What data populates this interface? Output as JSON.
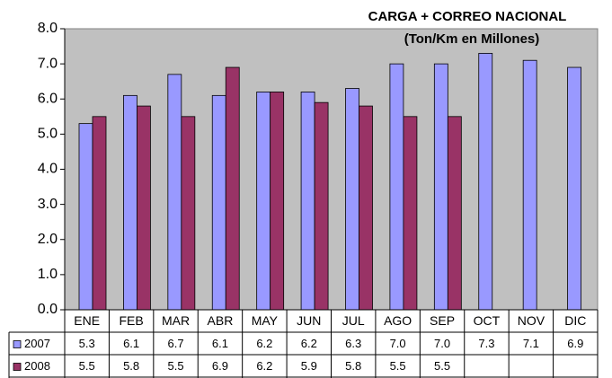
{
  "chart_data": {
    "type": "bar",
    "title": "CARGA + CORREO NACIONAL",
    "subtitle": "(Ton/Km en Millones)",
    "categories": [
      "ENE",
      "FEB",
      "MAR",
      "ABR",
      "MAY",
      "JUN",
      "JUL",
      "AGO",
      "SEP",
      "OCT",
      "NOV",
      "DIC"
    ],
    "series": [
      {
        "name": "2007",
        "color": "#9999ff",
        "values": [
          5.3,
          6.1,
          6.7,
          6.1,
          6.2,
          6.2,
          6.3,
          7.0,
          7.0,
          7.3,
          7.1,
          6.9
        ],
        "value_labels": [
          "5.3",
          "6.1",
          "6.7",
          "6.1",
          "6.2",
          "6.2",
          "6.3",
          "7.0",
          "7.0",
          "7.3",
          "7.1",
          "6.9"
        ]
      },
      {
        "name": "2008",
        "color": "#993366",
        "values": [
          5.5,
          5.8,
          5.5,
          6.9,
          6.2,
          5.9,
          5.8,
          5.5,
          5.5,
          null,
          null,
          null
        ],
        "value_labels": [
          "5.5",
          "5.8",
          "5.5",
          "6.9",
          "6.2",
          "5.9",
          "5.8",
          "5.5",
          "5.5",
          null,
          null,
          null
        ]
      }
    ],
    "ylim": [
      0,
      8
    ],
    "yticks": [
      {
        "value": 0,
        "label": "0.0"
      },
      {
        "value": 1,
        "label": "1.0"
      },
      {
        "value": 2,
        "label": "2.0"
      },
      {
        "value": 3,
        "label": "3.0"
      },
      {
        "value": 4,
        "label": "4.0"
      },
      {
        "value": 5,
        "label": "5.0"
      },
      {
        "value": 6,
        "label": "6.0"
      },
      {
        "value": 7,
        "label": "7.0"
      },
      {
        "value": 8,
        "label": "8.0"
      }
    ],
    "plot_background": "#c0c0c0"
  }
}
